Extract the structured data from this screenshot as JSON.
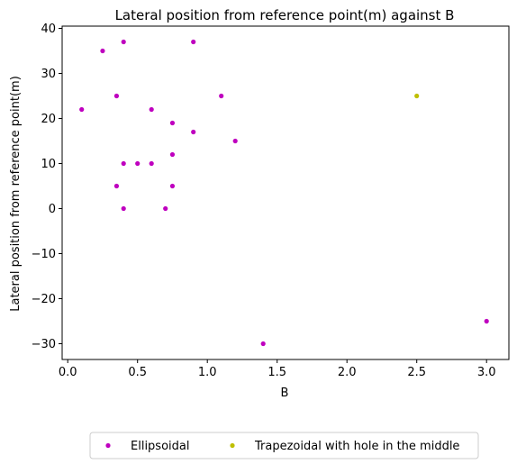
{
  "chart_data": {
    "type": "scatter",
    "title": "Lateral position from reference point(m) against B",
    "xlabel": "B",
    "ylabel": "Lateral position from reference point(m)",
    "xlim": [
      -0.04,
      3.16
    ],
    "ylim": [
      -33.5,
      40.5
    ],
    "xticks": [
      0.0,
      0.5,
      1.0,
      1.5,
      2.0,
      2.5,
      3.0
    ],
    "xtick_labels": [
      "0.0",
      "0.5",
      "1.0",
      "1.5",
      "2.0",
      "2.5",
      "3.0"
    ],
    "yticks": [
      -30,
      -20,
      -10,
      0,
      10,
      20,
      30,
      40
    ],
    "ytick_labels": [
      "−30",
      "−20",
      "−10",
      "0",
      "10",
      "20",
      "30",
      "40"
    ],
    "grid": false,
    "legend_position": "bottom-center-outside",
    "series": [
      {
        "name": "Ellipsoidal",
        "color": "#bf00bf",
        "points": [
          [
            0.1,
            22
          ],
          [
            0.25,
            35
          ],
          [
            0.35,
            25
          ],
          [
            0.35,
            5
          ],
          [
            0.4,
            37
          ],
          [
            0.4,
            10
          ],
          [
            0.4,
            0
          ],
          [
            0.5,
            10
          ],
          [
            0.6,
            22
          ],
          [
            0.6,
            10
          ],
          [
            0.7,
            0
          ],
          [
            0.75,
            19
          ],
          [
            0.75,
            12
          ],
          [
            0.75,
            5
          ],
          [
            0.9,
            37
          ],
          [
            0.9,
            17
          ],
          [
            1.1,
            25
          ],
          [
            1.2,
            15
          ],
          [
            1.4,
            -30
          ],
          [
            3.0,
            -25
          ]
        ]
      },
      {
        "name": "Trapezoidal with hole in the middle",
        "color": "#bfbf00",
        "points": [
          [
            2.5,
            25
          ]
        ]
      }
    ]
  }
}
